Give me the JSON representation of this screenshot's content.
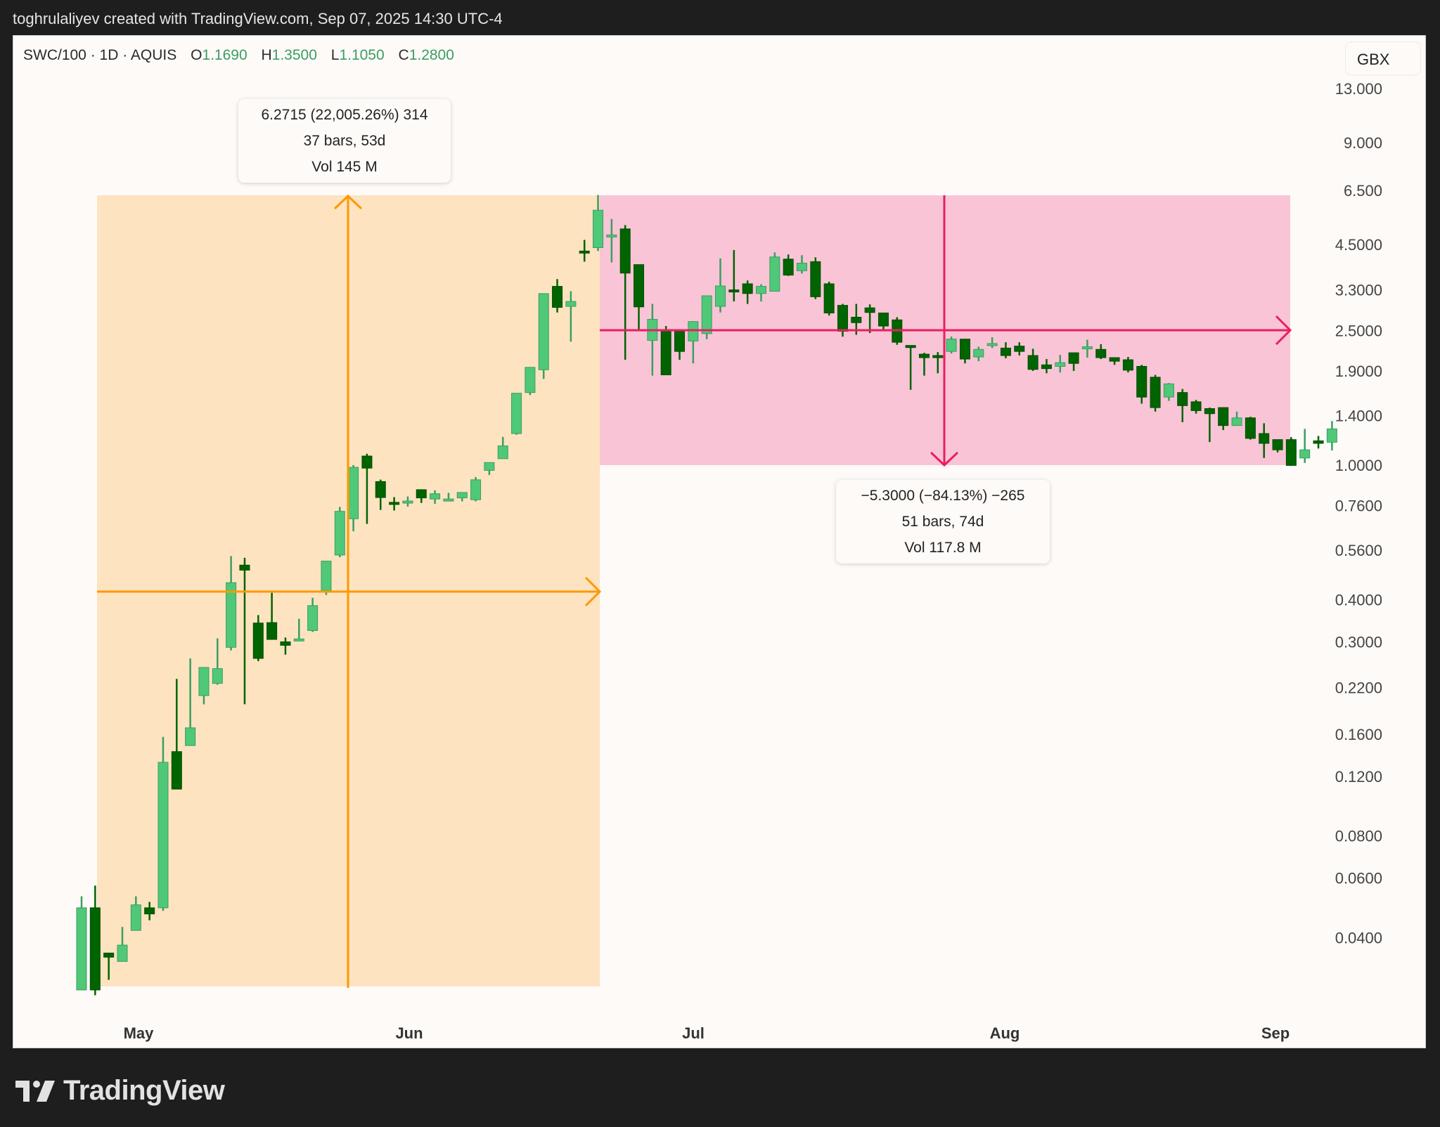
{
  "header": {
    "attribution": "toghrulaliyev created with TradingView.com, Sep 07, 2025 14:30 UTC-4"
  },
  "legend": {
    "symbol": "SWC/100 · 1D · AQUIS",
    "open_label": "O",
    "open": "1.1690",
    "high_label": "H",
    "high": "1.3500",
    "low_label": "L",
    "low": "1.1050",
    "close_label": "C",
    "close": "1.2800"
  },
  "currency_button": "GBX",
  "measure_up": {
    "line1": "6.2715 (22,005.26%) 314",
    "line2": "37 bars, 53d",
    "line3": "Vol 145 M",
    "color": "#ff9800",
    "fill": "#fde3c0"
  },
  "measure_down": {
    "line1": "−5.3000 (−84.13%) −265",
    "line2": "51 bars, 74d",
    "line3": "Vol 117.8 M",
    "color": "#e91e63",
    "fill": "#f9c4d6"
  },
  "footer": {
    "brand": "TradingView"
  },
  "colors": {
    "up_body": "#4fc878",
    "up_border": "#3a9e62",
    "down_body": "#006400",
    "down_border": "#004d00",
    "pane_bg": "#fdfaf8",
    "axis_text": "#444444"
  },
  "chart_data": {
    "type": "candlestick",
    "title": "SWC/100 · 1D · AQUIS",
    "xlabel": "",
    "ylabel": "GBX",
    "y_scale": "log",
    "ylim": [
      0.03,
      14
    ],
    "y_ticks": [
      "13.000",
      "9.000",
      "6.500",
      "4.5000",
      "3.3000",
      "2.5000",
      "1.9000",
      "1.4000",
      "1.0000",
      "0.7600",
      "0.5600",
      "0.4000",
      "0.3000",
      "0.2200",
      "0.1600",
      "0.1200",
      "0.0800",
      "0.0600",
      "0.0400"
    ],
    "x_ticks": [
      "May",
      "Jun",
      "Jul",
      "Aug",
      "Sep"
    ],
    "grid": false,
    "candles": [
      {
        "o": 0.028,
        "h": 0.053,
        "l": 0.028,
        "c": 0.049
      },
      {
        "o": 0.049,
        "h": 0.057,
        "l": 0.027,
        "c": 0.028
      },
      {
        "o": 0.036,
        "h": 0.036,
        "l": 0.03,
        "c": 0.035
      },
      {
        "o": 0.034,
        "h": 0.043,
        "l": 0.034,
        "c": 0.038
      },
      {
        "o": 0.042,
        "h": 0.053,
        "l": 0.042,
        "c": 0.05
      },
      {
        "o": 0.049,
        "h": 0.051,
        "l": 0.045,
        "c": 0.047
      },
      {
        "o": 0.049,
        "h": 0.157,
        "l": 0.048,
        "c": 0.132
      },
      {
        "o": 0.142,
        "h": 0.233,
        "l": 0.132,
        "c": 0.11
      },
      {
        "o": 0.148,
        "h": 0.268,
        "l": 0.148,
        "c": 0.167
      },
      {
        "o": 0.208,
        "h": 0.217,
        "l": 0.196,
        "c": 0.252
      },
      {
        "o": 0.226,
        "h": 0.307,
        "l": 0.224,
        "c": 0.25
      },
      {
        "o": 0.289,
        "h": 0.538,
        "l": 0.283,
        "c": 0.449
      },
      {
        "o": 0.506,
        "h": 0.532,
        "l": 0.196,
        "c": 0.489
      },
      {
        "o": 0.341,
        "h": 0.36,
        "l": 0.263,
        "c": 0.268
      },
      {
        "o": 0.342,
        "h": 0.419,
        "l": 0.311,
        "c": 0.305
      },
      {
        "o": 0.3,
        "h": 0.309,
        "l": 0.275,
        "c": 0.293
      },
      {
        "o": 0.305,
        "h": 0.351,
        "l": 0.303,
        "c": 0.306
      },
      {
        "o": 0.324,
        "h": 0.405,
        "l": 0.321,
        "c": 0.384
      },
      {
        "o": 0.425,
        "h": 0.466,
        "l": 0.413,
        "c": 0.52
      },
      {
        "o": 0.542,
        "h": 0.752,
        "l": 0.534,
        "c": 0.73
      },
      {
        "o": 0.694,
        "h": 1.0,
        "l": 0.637,
        "c": 0.985
      },
      {
        "o": 1.064,
        "h": 1.081,
        "l": 0.67,
        "c": 0.98
      },
      {
        "o": 0.894,
        "h": 0.906,
        "l": 0.737,
        "c": 0.802
      },
      {
        "o": 0.776,
        "h": 0.804,
        "l": 0.734,
        "c": 0.773
      },
      {
        "o": 0.776,
        "h": 0.808,
        "l": 0.754,
        "c": 0.783
      },
      {
        "o": 0.846,
        "h": 0.848,
        "l": 0.773,
        "c": 0.8
      },
      {
        "o": 0.794,
        "h": 0.842,
        "l": 0.768,
        "c": 0.823
      },
      {
        "o": 0.79,
        "h": 0.828,
        "l": 0.79,
        "c": 0.794
      },
      {
        "o": 0.8,
        "h": 0.831,
        "l": 0.781,
        "c": 0.83
      },
      {
        "o": 0.79,
        "h": 0.922,
        "l": 0.781,
        "c": 0.905
      },
      {
        "o": 0.965,
        "h": 0.998,
        "l": 0.935,
        "c": 1.018
      },
      {
        "o": 1.045,
        "h": 1.212,
        "l": 1.044,
        "c": 1.14
      },
      {
        "o": 1.24,
        "h": 1.492,
        "l": 1.23,
        "c": 1.632
      },
      {
        "o": 1.64,
        "h": 1.908,
        "l": 1.612,
        "c": 1.947
      },
      {
        "o": 1.915,
        "h": 3.167,
        "l": 1.8,
        "c": 3.218
      },
      {
        "o": 3.38,
        "h": 3.552,
        "l": 2.829,
        "c": 2.93
      },
      {
        "o": 2.95,
        "h": 3.27,
        "l": 2.32,
        "c": 3.05
      },
      {
        "o": 4.3,
        "h": 4.64,
        "l": 4.0,
        "c": 4.28
      },
      {
        "o": 4.4,
        "h": 6.3,
        "l": 4.3,
        "c": 5.68
      },
      {
        "o": 4.8,
        "h": 5.35,
        "l": 3.98,
        "c": 4.8
      },
      {
        "o": 5.0,
        "h": 5.13,
        "l": 2.05,
        "c": 3.7
      },
      {
        "o": 3.92,
        "h": 3.92,
        "l": 2.49,
        "c": 2.94
      },
      {
        "o": 2.34,
        "h": 3.0,
        "l": 1.84,
        "c": 2.7
      },
      {
        "o": 2.51,
        "h": 2.58,
        "l": 1.96,
        "c": 1.85
      },
      {
        "o": 2.49,
        "h": 2.52,
        "l": 2.05,
        "c": 2.17
      },
      {
        "o": 2.33,
        "h": 2.66,
        "l": 2.0,
        "c": 2.66
      },
      {
        "o": 2.45,
        "h": 3.17,
        "l": 2.36,
        "c": 3.17
      },
      {
        "o": 2.95,
        "h": 4.09,
        "l": 2.83,
        "c": 3.39
      },
      {
        "o": 3.3,
        "h": 4.33,
        "l": 3.05,
        "c": 3.28
      },
      {
        "o": 3.44,
        "h": 3.52,
        "l": 3.0,
        "c": 3.22
      },
      {
        "o": 3.22,
        "h": 3.43,
        "l": 3.05,
        "c": 3.38
      },
      {
        "o": 3.27,
        "h": 4.26,
        "l": 3.55,
        "c": 4.13
      },
      {
        "o": 4.07,
        "h": 4.2,
        "l": 3.63,
        "c": 3.65
      },
      {
        "o": 3.76,
        "h": 4.18,
        "l": 3.69,
        "c": 3.96
      },
      {
        "o": 4.0,
        "h": 4.12,
        "l": 3.1,
        "c": 3.15
      },
      {
        "o": 3.44,
        "h": 3.49,
        "l": 2.77,
        "c": 2.82
      },
      {
        "o": 2.97,
        "h": 3.0,
        "l": 2.4,
        "c": 2.49
      },
      {
        "o": 2.74,
        "h": 3.0,
        "l": 2.43,
        "c": 2.64
      },
      {
        "o": 2.92,
        "h": 2.99,
        "l": 2.46,
        "c": 2.83
      },
      {
        "o": 2.82,
        "h": 2.82,
        "l": 2.52,
        "c": 2.58
      },
      {
        "o": 2.69,
        "h": 2.74,
        "l": 2.27,
        "c": 2.31
      },
      {
        "o": 2.26,
        "h": 2.26,
        "l": 1.67,
        "c": 2.24
      },
      {
        "o": 2.13,
        "h": 2.15,
        "l": 1.84,
        "c": 2.08
      },
      {
        "o": 2.11,
        "h": 2.16,
        "l": 1.87,
        "c": 2.1
      },
      {
        "o": 2.17,
        "h": 2.4,
        "l": 2.14,
        "c": 2.36
      },
      {
        "o": 2.36,
        "h": 2.36,
        "l": 2.0,
        "c": 2.06
      },
      {
        "o": 2.09,
        "h": 2.24,
        "l": 2.03,
        "c": 2.2
      },
      {
        "o": 2.29,
        "h": 2.39,
        "l": 2.22,
        "c": 2.29
      },
      {
        "o": 2.22,
        "h": 2.31,
        "l": 2.07,
        "c": 2.11
      },
      {
        "o": 2.25,
        "h": 2.31,
        "l": 2.11,
        "c": 2.17
      },
      {
        "o": 2.11,
        "h": 2.21,
        "l": 1.9,
        "c": 1.92
      },
      {
        "o": 1.98,
        "h": 2.06,
        "l": 1.87,
        "c": 1.93
      },
      {
        "o": 1.96,
        "h": 2.12,
        "l": 1.88,
        "c": 2.01
      },
      {
        "o": 2.15,
        "h": 2.15,
        "l": 1.9,
        "c": 2.0
      },
      {
        "o": 2.22,
        "h": 2.35,
        "l": 2.08,
        "c": 2.24
      },
      {
        "o": 2.2,
        "h": 2.28,
        "l": 2.06,
        "c": 2.08
      },
      {
        "o": 2.08,
        "h": 2.08,
        "l": 1.98,
        "c": 2.03
      },
      {
        "o": 2.05,
        "h": 2.09,
        "l": 1.88,
        "c": 1.91
      },
      {
        "o": 1.96,
        "h": 1.98,
        "l": 1.52,
        "c": 1.59
      },
      {
        "o": 1.82,
        "h": 1.85,
        "l": 1.44,
        "c": 1.48
      },
      {
        "o": 1.59,
        "h": 1.75,
        "l": 1.55,
        "c": 1.74
      },
      {
        "o": 1.64,
        "h": 1.68,
        "l": 1.34,
        "c": 1.5
      },
      {
        "o": 1.54,
        "h": 1.56,
        "l": 1.42,
        "c": 1.45
      },
      {
        "o": 1.47,
        "h": 1.48,
        "l": 1.17,
        "c": 1.42
      },
      {
        "o": 1.48,
        "h": 1.48,
        "l": 1.27,
        "c": 1.31
      },
      {
        "o": 1.31,
        "h": 1.44,
        "l": 1.31,
        "c": 1.38
      },
      {
        "o": 1.38,
        "h": 1.39,
        "l": 1.19,
        "c": 1.2
      },
      {
        "o": 1.24,
        "h": 1.33,
        "l": 1.05,
        "c": 1.16
      },
      {
        "o": 1.19,
        "h": 1.19,
        "l": 1.09,
        "c": 1.11
      },
      {
        "o": 1.19,
        "h": 1.21,
        "l": 0.995,
        "c": 0.998
      },
      {
        "o": 1.05,
        "h": 1.28,
        "l": 1.015,
        "c": 1.11
      },
      {
        "o": 1.18,
        "h": 1.22,
        "l": 1.12,
        "c": 1.16
      },
      {
        "o": 1.169,
        "h": 1.35,
        "l": 1.105,
        "c": 1.28
      }
    ]
  }
}
